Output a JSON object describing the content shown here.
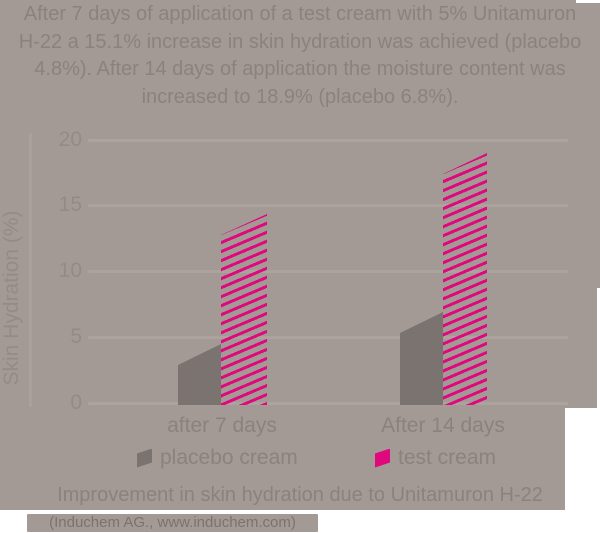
{
  "header": {
    "summary_lines": [
      "After 7 days of application of a test cream with 5% Unitamuron",
      "H-22 a 15.1% increase in skin hydration was achieved (placebo",
      "4.8%). After 14 days of application the moisture content was",
      "increased to 18.9% (placebo 6.8%)."
    ]
  },
  "chart_data": {
    "type": "bar",
    "title": "Improvement in skin hydration due to Unitamuron H-22",
    "ylabel": "Skin Hydration (%)",
    "xlabel": "",
    "ylim": [
      0,
      20
    ],
    "yticks": [
      0,
      5,
      10,
      15,
      20
    ],
    "grid": "horizontal",
    "legend_position": "bottom",
    "bar_style": "slanted-top-parallelogram",
    "categories": [
      "after 7 days",
      "After 14 days"
    ],
    "series": [
      {
        "name": "placebo cream",
        "values": [
          4.8,
          6.8
        ],
        "color": "#7b7370",
        "pattern": "solid"
      },
      {
        "name": "test cream",
        "values": [
          15.1,
          18.9
        ],
        "color": "#e0087d",
        "pattern": "diagonal-stripes"
      }
    ],
    "drawn_bar_top_right_values": [
      [
        4.5,
        6.9
      ],
      [
        14.4,
        19.0
      ]
    ],
    "slant_units": 1.6
  },
  "footer": {
    "citation": "(Induchem AG., www.induchem.com)"
  },
  "colors": {
    "page": "#ffffff",
    "background": "#a39a96",
    "text": "#8b827e",
    "muted_text": "#948b86",
    "gridline": "#ada39e",
    "placebo_bar": "#7b7370",
    "test_bar_magenta": "#e0087d"
  }
}
